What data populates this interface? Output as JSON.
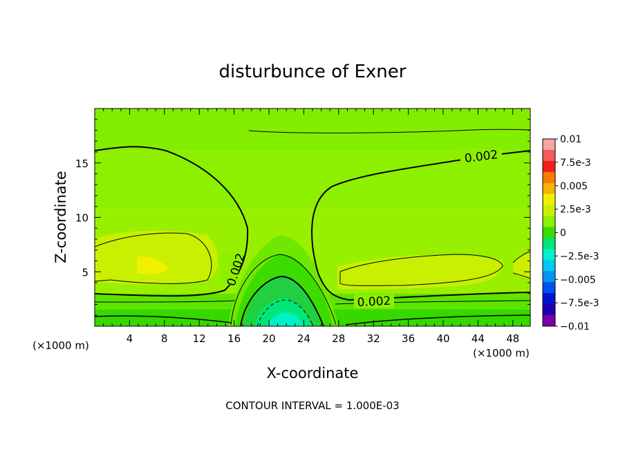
{
  "chart_data": {
    "type": "heatmap",
    "title": "disturbunce of Exner",
    "xlabel": "X-coordinate",
    "ylabel": "Z-coordinate",
    "x_unit_left": "(×1000 m)",
    "x_unit_right": "(×1000 m)",
    "xlim": [
      0,
      50
    ],
    "ylim": [
      0,
      20
    ],
    "x_ticks": [
      4,
      8,
      12,
      16,
      20,
      24,
      28,
      32,
      36,
      40,
      44,
      48
    ],
    "y_ticks": [
      5,
      10,
      15
    ],
    "contour_labels": [
      "0.002",
      "0.002",
      "0.002"
    ],
    "footer": "CONTOUR INTERVAL = 1.000E-03",
    "colorbar": {
      "labels": [
        "0.01",
        "7.5e-3",
        "0.005",
        "2.5e-3",
        "0",
        "−2.5e-3",
        "−0.005",
        "−7.5e-3",
        "−0.01"
      ],
      "colors": [
        "#f6a4a4",
        "#f45a5a",
        "#f21e1e",
        "#f57c00",
        "#f5b400",
        "#f0f000",
        "#c8f000",
        "#8cf000",
        "#3cdc00",
        "#00e678",
        "#00f0c8",
        "#00c8f0",
        "#0096f0",
        "#0050f0",
        "#0014d2",
        "#1e00b4",
        "#7800aa"
      ]
    }
  }
}
